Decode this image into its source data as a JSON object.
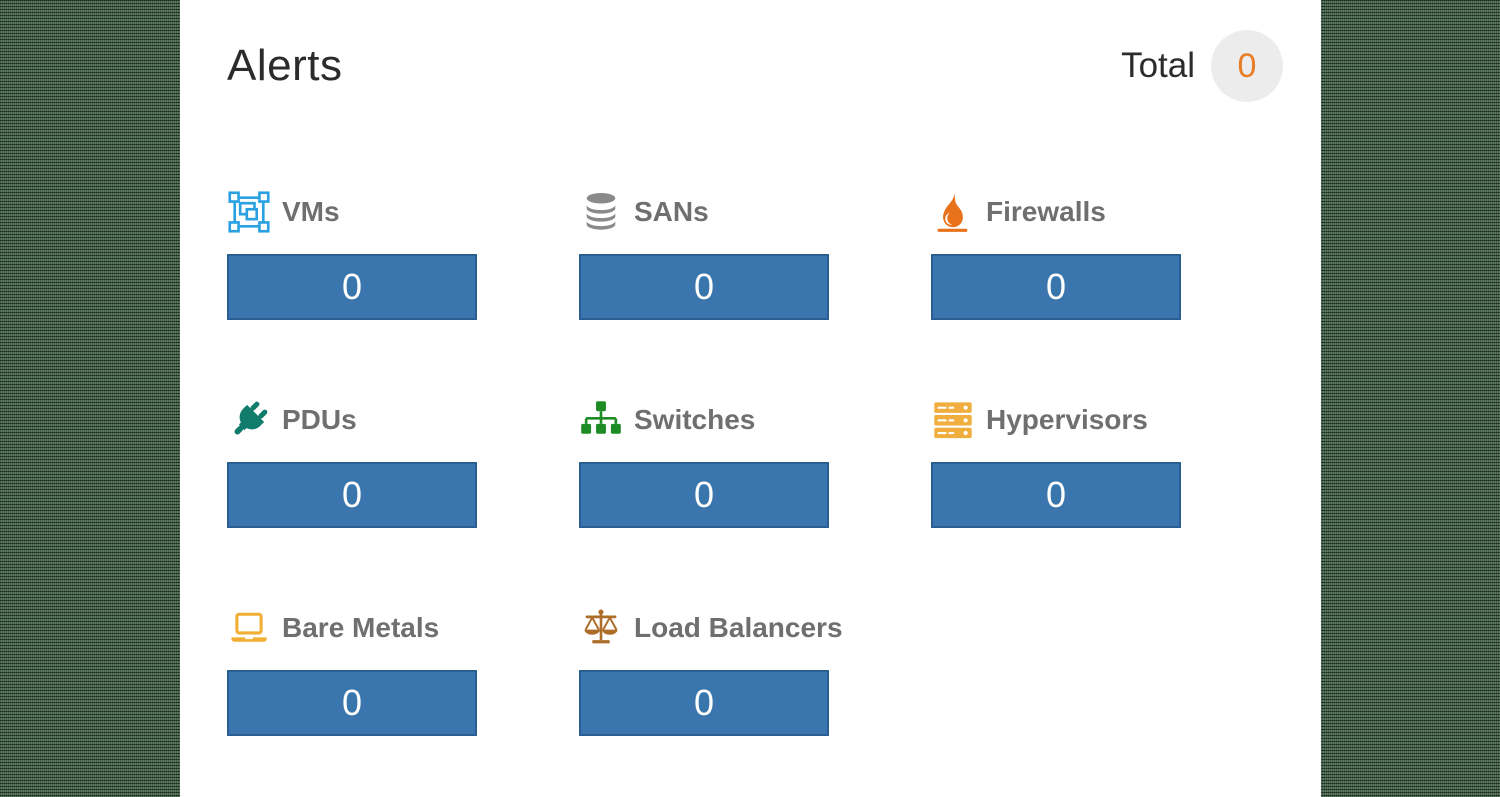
{
  "header": {
    "title": "Alerts",
    "total_label": "Total",
    "total_value": "0"
  },
  "colors": {
    "backdrop": "#5d7f63",
    "panel_bg": "#ffffff",
    "title_text": "#2b2b2b",
    "label_text": "#6f6f6f",
    "bar_fill": "#3a76ad",
    "bar_border": "#2a5f94",
    "bar_text": "#ffffff",
    "badge_bg": "#ececec",
    "badge_text": "#e87d25"
  },
  "categories": [
    {
      "label": "VMs",
      "value": "0",
      "icon": "vm-icon",
      "icon_color": "#2aa1e2"
    },
    {
      "label": "SANs",
      "value": "0",
      "icon": "database-icon",
      "icon_color": "#8a8a8a"
    },
    {
      "label": "Firewalls",
      "value": "0",
      "icon": "flame-icon",
      "icon_color": "#e8731c"
    },
    {
      "label": "PDUs",
      "value": "0",
      "icon": "plug-icon",
      "icon_color": "#117c6b"
    },
    {
      "label": "Switches",
      "value": "0",
      "icon": "sitemap-icon",
      "icon_color": "#1f8b24"
    },
    {
      "label": "Hypervisors",
      "value": "0",
      "icon": "server-stack-icon",
      "icon_color": "#efae3e"
    },
    {
      "label": "Bare Metals",
      "value": "0",
      "icon": "laptop-icon",
      "icon_color": "#f2ae33"
    },
    {
      "label": "Load Balancers",
      "value": "0",
      "icon": "balance-scale-icon",
      "icon_color": "#ac6d28"
    }
  ]
}
